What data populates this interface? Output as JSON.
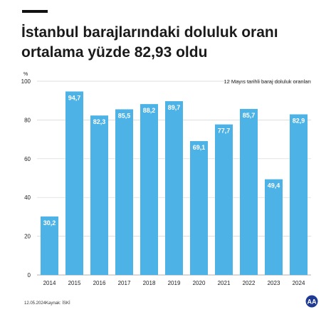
{
  "title_lines": [
    "İstanbul barajlarındaki doluluk oranı",
    "ortalama yüzde 82,93 oldu"
  ],
  "footer": {
    "date": "12.05.2024",
    "source": "Kaynak: İSKİ"
  },
  "logo_text": "AA",
  "colors": {
    "bar": "#4db3e6",
    "grid": "#d4d4d4",
    "text": "#222222",
    "logo": "#1f3a93"
  },
  "chart_data": {
    "type": "bar",
    "title": "12 Mayıs tarihli baraj doluluk oranları",
    "ylabel": "%",
    "xlabel": "",
    "categories": [
      "2014",
      "2015",
      "2016",
      "2017",
      "2018",
      "2019",
      "2020",
      "2021",
      "2022",
      "2023",
      "2024"
    ],
    "values": [
      30.2,
      94.7,
      82.3,
      85.5,
      88.2,
      89.7,
      69.1,
      77.7,
      85.7,
      49.4,
      82.9
    ],
    "value_labels": [
      "30,2",
      "94,7",
      "82,3",
      "85,5",
      "88,2",
      "89,7",
      "69,1",
      "77,7",
      "85,7",
      "49,4",
      "82,9"
    ],
    "ylim": [
      0,
      100
    ],
    "yticks": [
      0,
      20,
      40,
      60,
      80,
      100
    ],
    "grid": true,
    "legend": "none"
  }
}
